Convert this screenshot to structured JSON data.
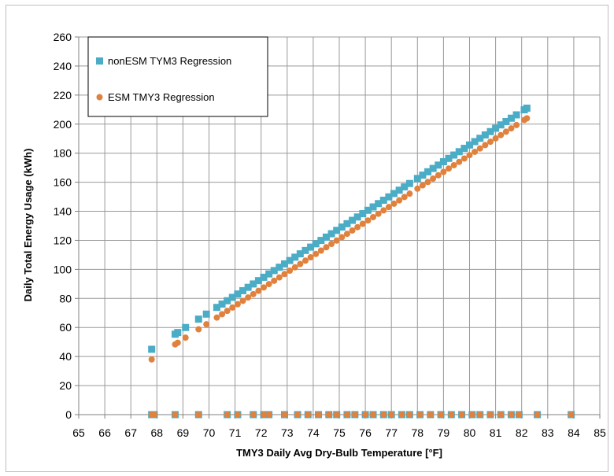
{
  "chart_data": {
    "type": "scatter",
    "xlabel": "TMY3 Daily Avg Dry-Bulb Temperature [°F]",
    "ylabel": "Daily Total Energy Usage (kWh)",
    "xlim": [
      65,
      85
    ],
    "ylim": [
      0,
      260
    ],
    "xticks": [
      "65",
      "66",
      "67",
      "68",
      "69",
      "70",
      "71",
      "72",
      "73",
      "74",
      "75",
      "76",
      "77",
      "78",
      "79",
      "80",
      "81",
      "82",
      "83",
      "84",
      "85"
    ],
    "yticks": [
      "0",
      "20",
      "40",
      "60",
      "80",
      "100",
      "120",
      "140",
      "160",
      "180",
      "200",
      "220",
      "240",
      "260"
    ],
    "grid": true,
    "legend_position": "top-left",
    "series": [
      {
        "name": "nonESM TYM3 Regression",
        "color": "#4bacc6",
        "marker": "square",
        "regression": {
          "x_start": 67.8,
          "y_start": 45,
          "x_end": 82.2,
          "y_end": 211
        },
        "x": [
          67.8,
          68.7,
          68.8,
          69.1,
          69.6,
          69.9,
          70.3,
          70.5,
          70.7,
          70.9,
          71.1,
          71.3,
          71.5,
          71.7,
          71.9,
          72.1,
          72.3,
          72.5,
          72.7,
          72.9,
          73.1,
          73.3,
          73.5,
          73.7,
          73.9,
          74.1,
          74.3,
          74.5,
          74.7,
          74.9,
          75.1,
          75.3,
          75.5,
          75.7,
          75.9,
          76.1,
          76.3,
          76.5,
          76.7,
          76.9,
          77.1,
          77.3,
          77.5,
          77.7,
          78.0,
          78.2,
          78.4,
          78.6,
          78.8,
          79.0,
          79.2,
          79.4,
          79.6,
          79.8,
          80.0,
          80.2,
          80.4,
          80.6,
          80.8,
          81.0,
          81.2,
          81.4,
          81.6,
          81.8,
          82.1,
          82.2
        ],
        "zero_x": [
          67.8,
          67.9,
          68.7,
          69.6,
          70.7,
          71.1,
          71.7,
          72.1,
          72.3,
          72.9,
          73.4,
          73.8,
          74.2,
          74.6,
          74.9,
          75.3,
          75.6,
          76.0,
          76.3,
          76.7,
          77.0,
          77.4,
          77.7,
          78.1,
          78.5,
          78.9,
          79.3,
          79.7,
          80.1,
          80.4,
          80.8,
          81.2,
          81.6,
          81.9,
          82.6,
          83.9
        ]
      },
      {
        "name": "ESM TMY3 Regression",
        "color": "#e0813d",
        "marker": "circle",
        "regression": {
          "x_start": 67.8,
          "y_start": 38,
          "x_end": 82.2,
          "y_end": 204
        },
        "x": [
          67.8,
          68.7,
          68.8,
          69.1,
          69.6,
          69.9,
          70.3,
          70.5,
          70.7,
          70.9,
          71.1,
          71.3,
          71.5,
          71.7,
          71.9,
          72.1,
          72.3,
          72.5,
          72.7,
          72.9,
          73.1,
          73.3,
          73.5,
          73.7,
          73.9,
          74.1,
          74.3,
          74.5,
          74.7,
          74.9,
          75.1,
          75.3,
          75.5,
          75.7,
          75.9,
          76.1,
          76.3,
          76.5,
          76.7,
          76.9,
          77.1,
          77.3,
          77.5,
          77.7,
          78.0,
          78.2,
          78.4,
          78.6,
          78.8,
          79.0,
          79.2,
          79.4,
          79.6,
          79.8,
          80.0,
          80.2,
          80.4,
          80.6,
          80.8,
          81.0,
          81.2,
          81.4,
          81.6,
          81.8,
          82.1,
          82.2
        ],
        "zero_x": [
          67.8,
          67.9,
          68.7,
          69.6,
          70.7,
          71.1,
          71.7,
          72.1,
          72.3,
          72.9,
          73.4,
          73.8,
          74.2,
          74.6,
          74.9,
          75.3,
          75.6,
          76.0,
          76.3,
          76.7,
          77.0,
          77.4,
          77.7,
          78.1,
          78.5,
          78.9,
          79.3,
          79.7,
          80.1,
          80.4,
          80.8,
          81.2,
          81.6,
          81.9,
          82.6,
          83.9
        ]
      }
    ]
  }
}
